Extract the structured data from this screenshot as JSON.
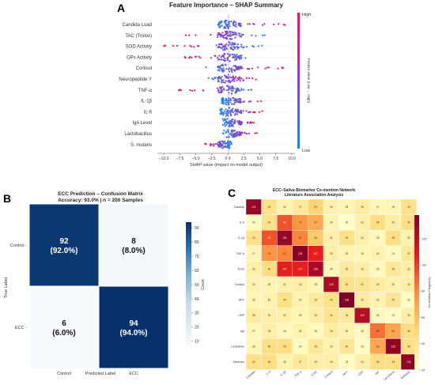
{
  "panels": {
    "a": "A",
    "b": "B",
    "c": "C"
  },
  "chart_data": [
    {
      "type": "scatter",
      "title": "Feature Importance – SHAP Summary",
      "xlabel": "SHAP value (impact on model output)",
      "xlim": [
        -11,
        10.5
      ],
      "xticks": [
        "−10.0",
        "−7.5",
        "−5.0",
        "−2.5",
        "0.0",
        "2.5",
        "5.0",
        "7.5",
        "10.0"
      ],
      "xtick_values": [
        -10,
        -7.5,
        -5,
        -2.5,
        0,
        2.5,
        5,
        7.5,
        10
      ],
      "features": [
        "Candida Load",
        "TAC (Trolox)",
        "SOD Activity",
        "GPx Activity",
        "Cortisol",
        "Neuropeptide Y",
        "TNF-α",
        "IL-1β",
        "IL-6",
        "IgA Level",
        "Lactobacillus",
        "S. mutans"
      ],
      "feature_ranges": [
        [
          -2.2,
          9.8
        ],
        [
          -7.5,
          6.5
        ],
        [
          -10.0,
          5.5
        ],
        [
          -7.0,
          4.5
        ],
        [
          -3.8,
          9.0
        ],
        [
          -3.5,
          4.5
        ],
        [
          -8.0,
          4.0
        ],
        [
          -1.0,
          6.0
        ],
        [
          -1.2,
          5.5
        ],
        [
          -0.8,
          4.5
        ],
        [
          -0.8,
          4.8
        ],
        [
          -3.8,
          0.6
        ]
      ],
      "colorbar": {
        "label": "Feature value\n(Low → High)",
        "high": "High",
        "low": "Low",
        "low_color": "#1e88e5",
        "high_color": "#ff0d57"
      }
    },
    {
      "type": "heatmap",
      "title": "ECC Prediction – Confusion Matrix",
      "subtitle": "Accuracy: 93.0% | n = 200 Samples",
      "xlabel": "Predicted Label",
      "ylabel": "True Label",
      "x_categories": [
        "Control",
        "ECC"
      ],
      "y_categories": [
        "Control",
        "ECC"
      ],
      "values": [
        [
          92,
          8
        ],
        [
          6,
          94
        ]
      ],
      "cell_text": [
        [
          "92\n(92.0%)",
          "8\n(8.0%)"
        ],
        [
          "6\n(6.0%)",
          "94\n(94.0%)"
        ]
      ],
      "colorbar": {
        "label": "Count",
        "ticks": [
          "10",
          "20",
          "30",
          "40",
          "50",
          "60",
          "70",
          "80",
          "90"
        ],
        "tick_values": [
          10,
          20,
          30,
          40,
          50,
          60,
          70,
          80,
          90
        ],
        "range": [
          6,
          94
        ]
      }
    },
    {
      "type": "heatmap",
      "title": "ECC–Saliva Biomarker Co-mention Network\nLiterature Association Analysis",
      "categories": [
        "Candida",
        "IL-6",
        "IL-1β",
        "TNF-α",
        "TLR2",
        "Cortisol",
        "NPY",
        "CRP",
        "IgA",
        "Lactoferrin",
        "Defensin"
      ],
      "values": [
        [
          131,
          43,
          30,
          37,
          52,
          30,
          28,
          35,
          27,
          28,
          43
        ],
        [
          24,
          43,
          94,
          76,
          67,
          29,
          20,
          32,
          45,
          33,
          45
        ],
        [
          43,
          94,
          131,
          81,
          55,
          31,
          44,
          32,
          26,
          45,
          30
        ],
        [
          27,
          76,
          81,
          135,
          107,
          33,
          29,
          28,
          30,
          24,
          37
        ],
        [
          32,
          46,
          107,
          107,
          126,
          28,
          36,
          33,
          25,
          39,
          33
        ],
        [
          30,
          29,
          31,
          33,
          28,
          125,
          43,
          41,
          35,
          30,
          33
        ],
        [
          28,
          30,
          44,
          29,
          36,
          43,
          138,
          36,
          30,
          40,
          23
        ],
        [
          35,
          32,
          32,
          28,
          33,
          41,
          36,
          122,
          26,
          23,
          33
        ],
        [
          27,
          33,
          26,
          30,
          25,
          35,
          30,
          26,
          86,
          69,
          45
        ],
        [
          28,
          45,
          45,
          24,
          39,
          30,
          40,
          23,
          69,
          133,
          45
        ],
        [
          43,
          45,
          30,
          37,
          33,
          33,
          23,
          33,
          45,
          45,
          133
        ]
      ],
      "colorbar": {
        "label": "Co-mention Frequency",
        "ticks": [
          "20",
          "40",
          "60",
          "80",
          "100",
          "120"
        ],
        "tick_values": [
          20,
          40,
          60,
          80,
          100,
          120
        ],
        "range": [
          20,
          138
        ]
      }
    }
  ]
}
